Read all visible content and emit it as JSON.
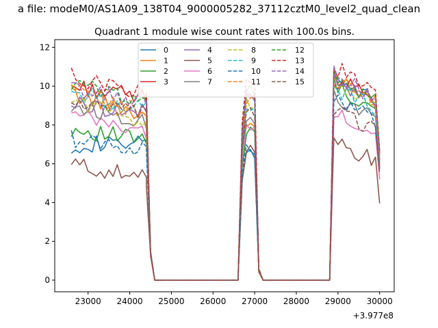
{
  "figure": {
    "suptitle": "a file: modeM0/AS1A09_138T04_9000005282_37112cztM0_level2_quad_clean"
  },
  "chart_data": {
    "type": "line",
    "title": "Quadrant 1 module wise count rates with 100.0s bins.",
    "xlabel": "",
    "ylabel": "",
    "x_offset_label": "+3.977e8",
    "xlim": [
      22200,
      30350
    ],
    "ylim": [
      -0.6,
      12.4
    ],
    "xticks": [
      23000,
      24000,
      25000,
      26000,
      27000,
      28000,
      29000,
      30000
    ],
    "yticks": [
      0,
      2,
      4,
      6,
      8,
      10,
      12
    ],
    "legend": {
      "position": "top-center",
      "ncol": 4
    },
    "segments": [
      {
        "start": 22600,
        "n": 19
      },
      {
        "start": 24400,
        "n": 5
      },
      {
        "start": 24600,
        "n": 21
      },
      {
        "start": 26600,
        "n": 7
      },
      {
        "start": 27200,
        "n": 17
      },
      {
        "start": 28700,
        "n": 14
      }
    ],
    "series": [
      {
        "name": "0",
        "color": "#1f77b4",
        "dash": "solid",
        "active": [
          7.0,
          7.0,
          6.6,
          10.6
        ]
      },
      {
        "name": "1",
        "color": "#ff7f0e",
        "dash": "solid",
        "active": [
          9.6,
          8.5,
          8.3,
          10.5
        ]
      },
      {
        "name": "2",
        "color": "#2ca02c",
        "dash": "solid",
        "active": [
          7.8,
          7.2,
          7.6,
          10.0
        ]
      },
      {
        "name": "3",
        "color": "#d62728",
        "dash": "solid",
        "active": [
          10.0,
          9.4,
          9.8,
          10.4
        ]
      },
      {
        "name": "4",
        "color": "#9467bd",
        "dash": "solid",
        "active": [
          9.1,
          8.6,
          9.4,
          10.3
        ]
      },
      {
        "name": "5",
        "color": "#8c564b",
        "dash": "solid",
        "active": [
          6.0,
          5.2,
          6.7,
          7.0
        ]
      },
      {
        "name": "6",
        "color": "#e377c2",
        "dash": "solid",
        "active": [
          8.5,
          7.6,
          7.9,
          8.6
        ]
      },
      {
        "name": "7",
        "color": "#7f7f7f",
        "dash": "solid",
        "active": [
          9.0,
          8.2,
          8.3,
          9.5
        ]
      },
      {
        "name": "8",
        "color": "#bcbd22",
        "dash": "dashed",
        "active": [
          9.3,
          8.2,
          9.0,
          10.2
        ]
      },
      {
        "name": "9",
        "color": "#17becf",
        "dash": "dashed",
        "active": [
          9.7,
          8.8,
          9.0,
          10.0
        ]
      },
      {
        "name": "10",
        "color": "#1f77b4",
        "dash": "dashed",
        "active": [
          7.3,
          6.7,
          6.8,
          9.3
        ]
      },
      {
        "name": "11",
        "color": "#ff7f0e",
        "dash": "dashed",
        "active": [
          9.8,
          8.6,
          9.4,
          10.4
        ]
      },
      {
        "name": "12",
        "color": "#2ca02c",
        "dash": "dashed",
        "active": [
          10.1,
          9.3,
          9.7,
          10.5
        ]
      },
      {
        "name": "13",
        "color": "#d62728",
        "dash": "dashed",
        "active": [
          10.5,
          9.6,
          10.4,
          11.0
        ]
      },
      {
        "name": "14",
        "color": "#9467bd",
        "dash": "dashed",
        "active": [
          9.9,
          9.1,
          9.5,
          10.6
        ]
      },
      {
        "name": "15",
        "color": "#8c564b",
        "dash": "dashed",
        "active": [
          9.2,
          8.5,
          8.6,
          8.8
        ]
      }
    ]
  }
}
